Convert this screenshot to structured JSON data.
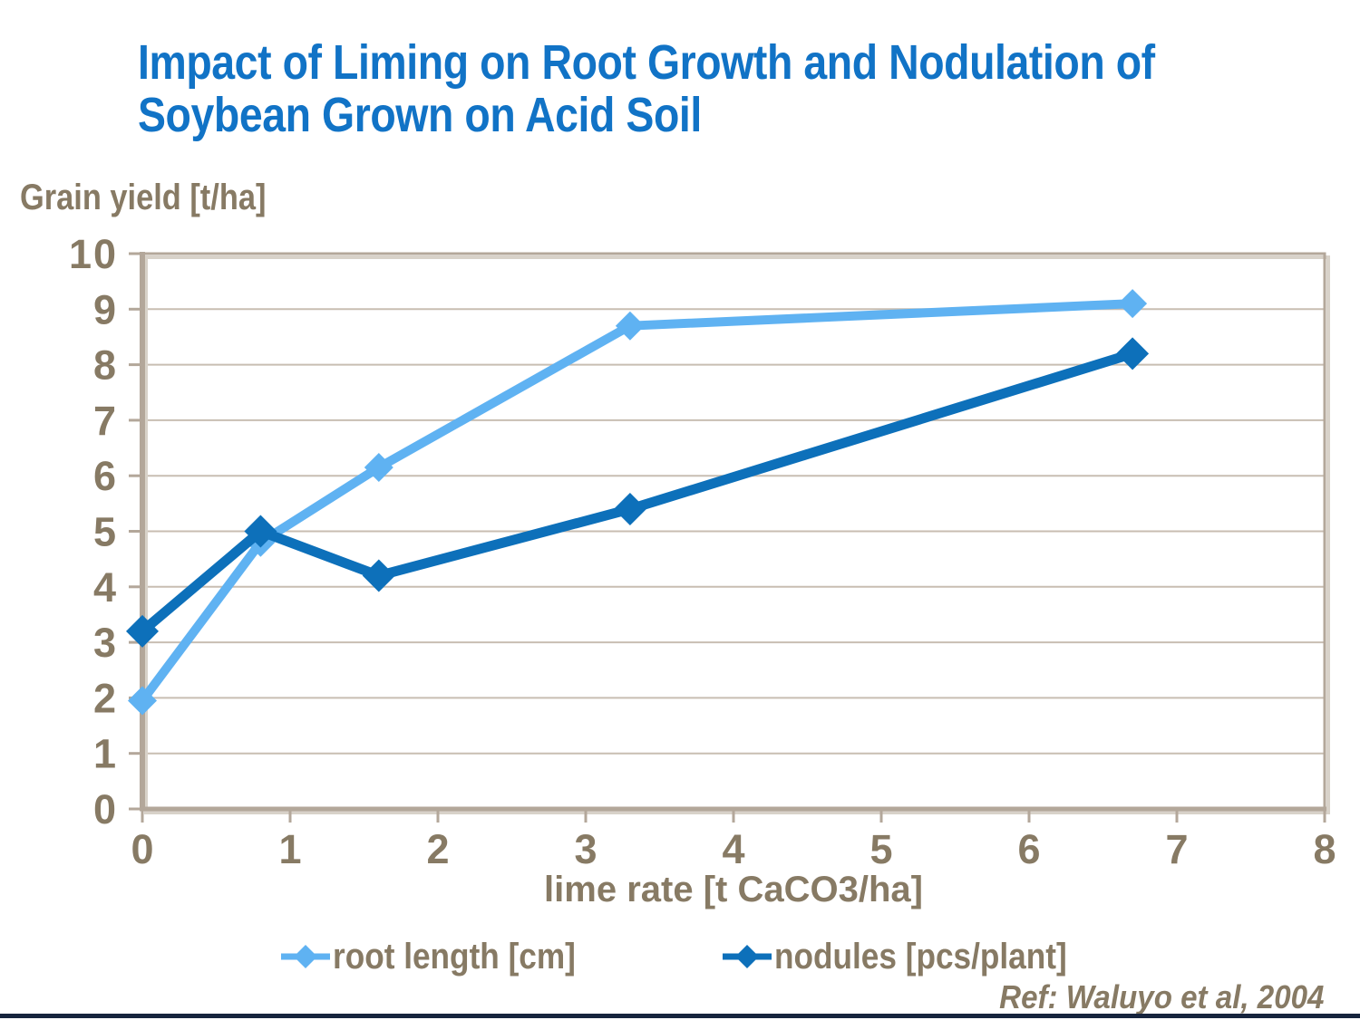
{
  "page": {
    "title": "Impact of Liming on Root Growth and Nodulation of Soybean Grown on Acid Soil",
    "reference": "Ref: Waluyo et al, 2004"
  },
  "colors": {
    "title_text": "#1173c6",
    "axis_text": "#877a64",
    "gridline": "#c8beb2",
    "plot_border": "#b3a79a",
    "axis_line": "#b3a79a",
    "series_root_length": "#5fb2f2",
    "series_nodules": "#0d70ba",
    "footer_bar": "#16243d"
  },
  "chart_data": {
    "type": "line",
    "title": "Impact of Liming on Root Growth and Nodulation of Soybean Grown on Acid Soil",
    "xlabel": "lime rate [t CaCO3/ha]",
    "ylabel": "Grain yield [t/ha]",
    "x": [
      0,
      0.8,
      1.6,
      3.3,
      6.7
    ],
    "series": [
      {
        "name": "root length [cm]",
        "color": "#5fb2f2",
        "values": [
          1.95,
          4.8,
          6.15,
          8.7,
          9.1
        ]
      },
      {
        "name": "nodules [pcs/plant]",
        "color": "#0d70ba",
        "values": [
          3.2,
          5.0,
          4.2,
          5.4,
          8.2
        ]
      }
    ],
    "xlim": [
      0,
      8
    ],
    "ylim": [
      0,
      10
    ],
    "x_ticks": [
      0,
      1,
      2,
      3,
      4,
      5,
      6,
      7,
      8
    ],
    "y_ticks": [
      0,
      1,
      2,
      3,
      4,
      5,
      6,
      7,
      8,
      9,
      10
    ],
    "grid": "horizontal",
    "legend_position": "bottom",
    "marker": "diamond"
  }
}
